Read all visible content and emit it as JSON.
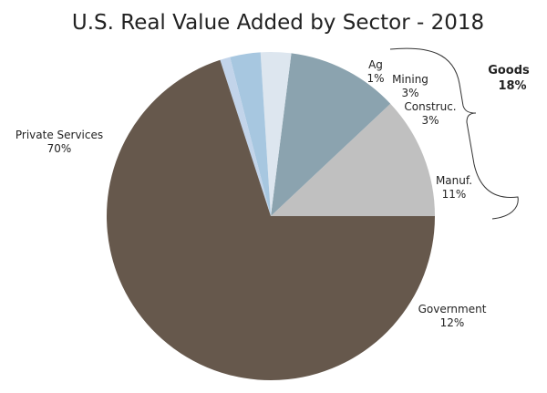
{
  "chart_data": {
    "type": "pie",
    "title": "U.S. Real Value Added by Sector - 2018",
    "slices": [
      {
        "name": "Government",
        "percent": 12,
        "label": "12%",
        "color": "#c0c0c0"
      },
      {
        "name": "Manuf.",
        "percent": 11,
        "label": "11%",
        "color": "#8ba3af"
      },
      {
        "name": "Construc.",
        "percent": 3,
        "label": "3%",
        "color": "#dde6ef"
      },
      {
        "name": "Mining",
        "percent": 3,
        "label": "3%",
        "color": "#a7c7e0"
      },
      {
        "name": "Ag",
        "percent": 1,
        "label": "1%",
        "color": "#c2d4ea"
      },
      {
        "name": "Private Services",
        "percent": 70,
        "label": "70%",
        "color": "#66584c"
      }
    ],
    "group_annotation": {
      "name": "Goods",
      "label": "18%"
    }
  }
}
